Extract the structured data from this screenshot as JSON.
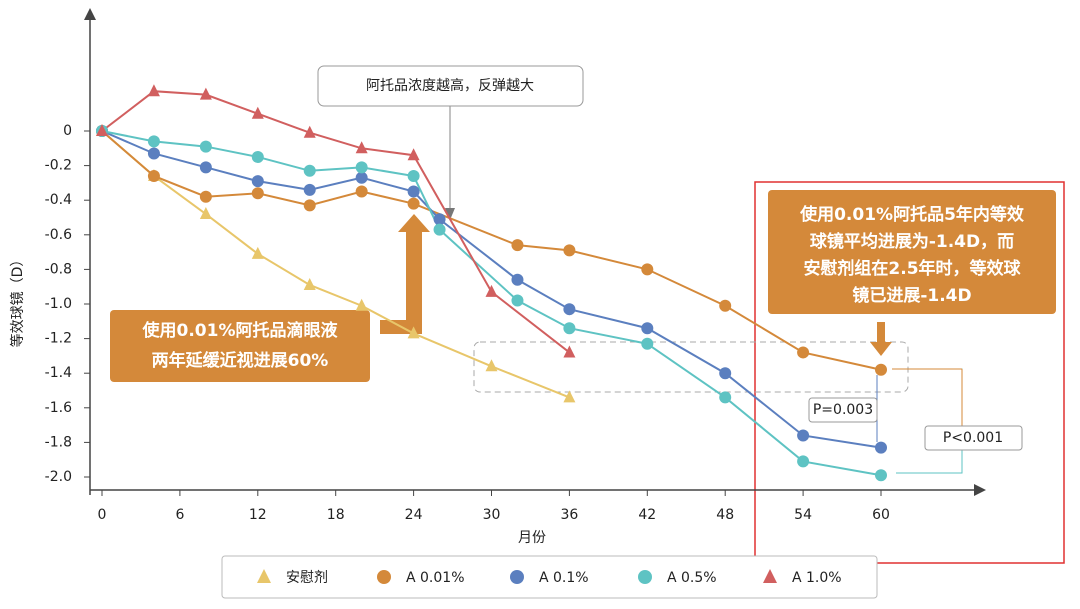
{
  "chart_data": {
    "type": "line",
    "x_label": "月份",
    "y_label": "等效球镜（D）",
    "xlim": [
      -1,
      68
    ],
    "ylim": [
      -2.1,
      0.7
    ],
    "xticks": [
      0,
      6,
      12,
      18,
      24,
      30,
      36,
      42,
      48,
      54,
      60
    ],
    "yticks": [
      0,
      -0.2,
      -0.4,
      -0.6,
      -0.8,
      {
        "value": -1,
        "label": "-1.0"
      },
      -1.2,
      -1.4,
      -1.6,
      -1.8,
      {
        "value": -2,
        "label": "-2.0"
      }
    ],
    "series": [
      {
        "name": "安慰剂",
        "color": "#e8c66a",
        "marker": "triangle",
        "x": [
          0,
          4,
          8,
          12,
          16,
          20,
          24,
          30,
          36
        ],
        "values": [
          0,
          -0.26,
          -0.48,
          -0.71,
          -0.89,
          -1.01,
          -1.17,
          -1.36,
          -1.54
        ]
      },
      {
        "name": "A 0.01%",
        "color": "#d4893a",
        "marker": "circle",
        "x": [
          0,
          4,
          8,
          12,
          16,
          20,
          24,
          32,
          36,
          42,
          48,
          54,
          60
        ],
        "values": [
          0,
          -0.26,
          -0.38,
          -0.36,
          -0.43,
          -0.35,
          -0.42,
          -0.66,
          -0.69,
          -0.8,
          -1.01,
          -1.28,
          -1.38
        ]
      },
      {
        "name": "A 0.1%",
        "color": "#5b7fbf",
        "marker": "circle",
        "x": [
          0,
          4,
          8,
          12,
          16,
          20,
          24,
          26,
          32,
          36,
          42,
          48,
          54,
          60
        ],
        "values": [
          0,
          -0.13,
          -0.21,
          -0.29,
          -0.34,
          -0.27,
          -0.35,
          -0.51,
          -0.86,
          -1.03,
          -1.14,
          -1.4,
          -1.76,
          -1.83
        ]
      },
      {
        "name": "A 0.5%",
        "color": "#5ec3c3",
        "marker": "circle",
        "x": [
          0,
          4,
          8,
          12,
          16,
          20,
          24,
          26,
          32,
          36,
          42,
          48,
          54,
          60
        ],
        "values": [
          0,
          -0.06,
          -0.09,
          -0.15,
          -0.23,
          -0.21,
          -0.26,
          -0.57,
          -0.98,
          -1.14,
          -1.23,
          -1.54,
          -1.91,
          -1.99
        ]
      },
      {
        "name": "A 1.0%",
        "color": "#d15f5f",
        "marker": "triangle",
        "x": [
          0,
          4,
          8,
          12,
          16,
          20,
          24,
          30,
          36
        ],
        "values": [
          0,
          0.23,
          0.21,
          0.1,
          -0.01,
          -0.1,
          -0.14,
          -0.93,
          -1.28
        ]
      }
    ],
    "annotations": {
      "rebound": "阿托品浓度越高，反弹越大",
      "left_callout": [
        "使用0.01%阿托品滴眼液",
        "两年延缓近视进展60%"
      ],
      "right_callout": [
        "使用0.01%阿托品5年内等效",
        "球镜平均进展为-1.4D，而",
        "安慰剂组在2.5年时，等效球",
        "镜已进展-1.4D"
      ],
      "p1": "P=0.003",
      "p2": "P<0.001"
    }
  }
}
